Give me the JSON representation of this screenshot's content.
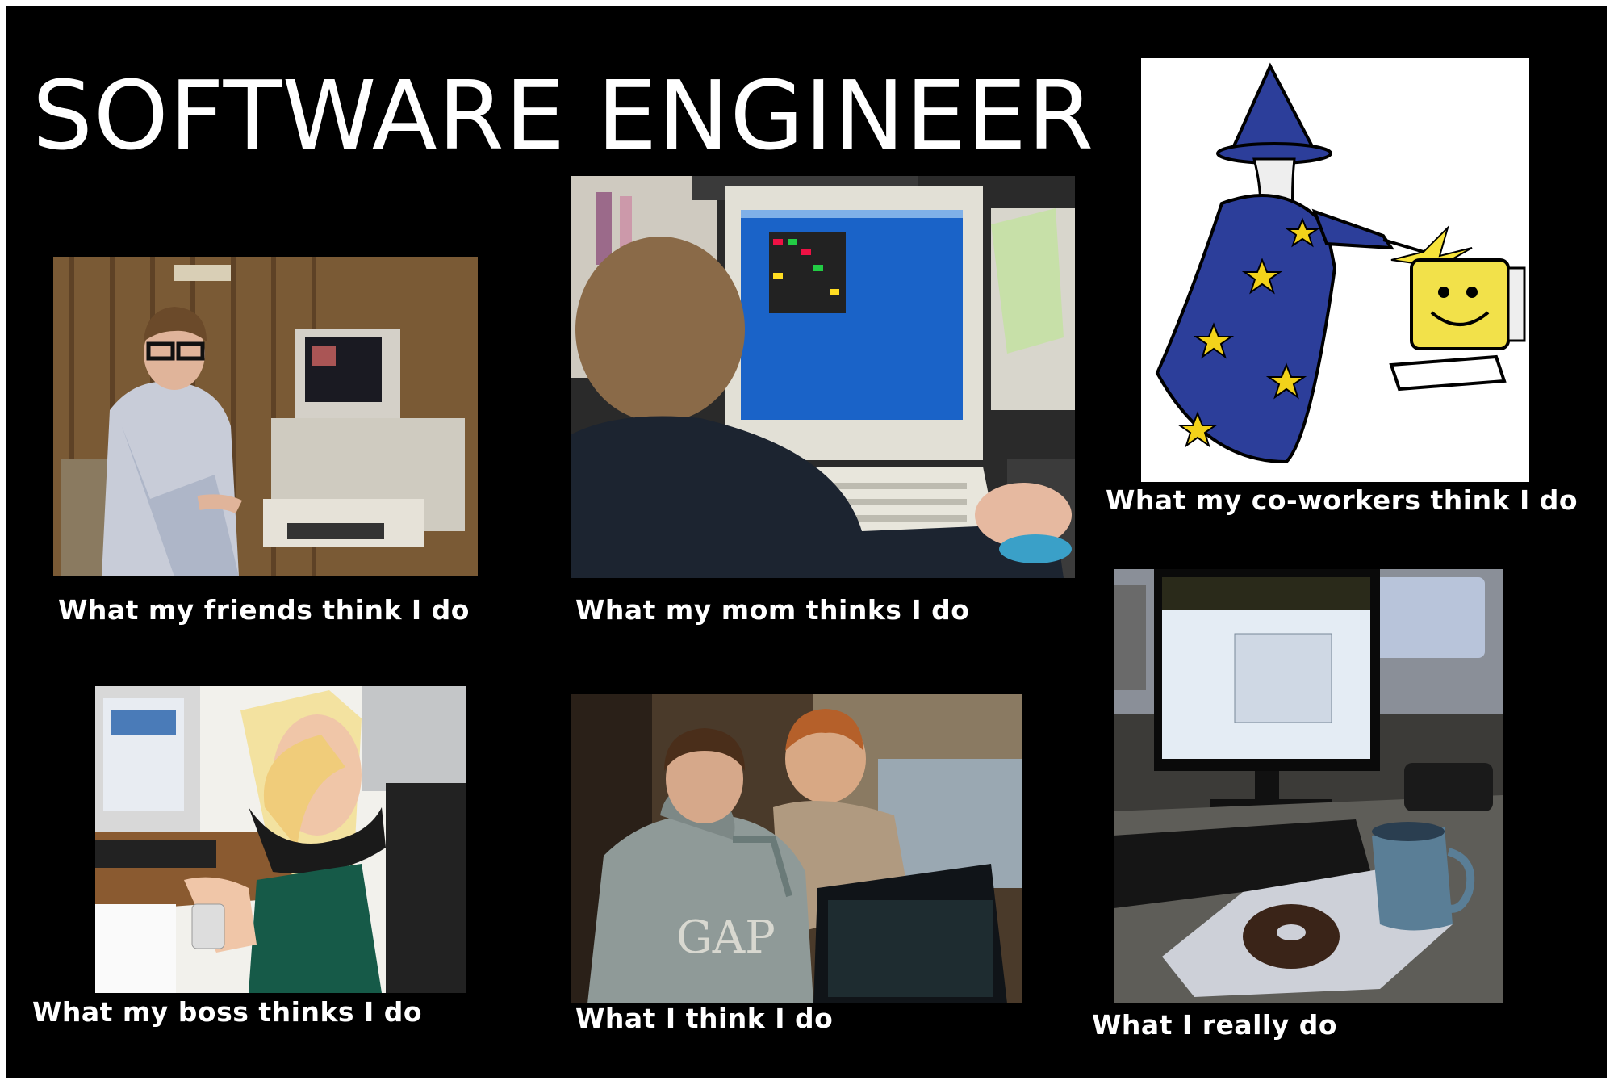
{
  "title": "SOFTWARE ENGINEER",
  "panels": [
    {
      "caption": "What my friends think I do",
      "scene": "nerd-at-vintage-computer"
    },
    {
      "caption": "What my mom thinks I do",
      "scene": "boy-playing-computer-game"
    },
    {
      "caption": "What my co-workers think I do",
      "scene": "wizard-zapping-computer"
    },
    {
      "caption": "What my boss thinks I do",
      "scene": "woman-with-neck-pillow-and-music-player"
    },
    {
      "caption": "What I think I do",
      "scene": "two-hackers-at-monitor"
    },
    {
      "caption": "What I really do",
      "scene": "desk-with-monitor-coffee-donut"
    }
  ],
  "gap_logo": "GAP"
}
